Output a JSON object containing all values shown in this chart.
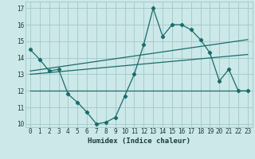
{
  "xlabel": "Humidex (Indice chaleur)",
  "xlim": [
    -0.5,
    23.5
  ],
  "ylim": [
    9.8,
    17.4
  ],
  "yticks": [
    10,
    11,
    12,
    13,
    14,
    15,
    16,
    17
  ],
  "xticks": [
    0,
    1,
    2,
    3,
    4,
    5,
    6,
    7,
    8,
    9,
    10,
    11,
    12,
    13,
    14,
    15,
    16,
    17,
    18,
    19,
    20,
    21,
    22,
    23
  ],
  "background_color": "#cce8e8",
  "grid_color": "#a0c8c8",
  "line_color": "#1a6b6b",
  "main_line": {
    "x": [
      0,
      1,
      2,
      3,
      4,
      5,
      6,
      7,
      8,
      9,
      10,
      11,
      12,
      13,
      14,
      15,
      16,
      17,
      18,
      19,
      20,
      21,
      22,
      23
    ],
    "y": [
      14.5,
      13.9,
      13.2,
      13.3,
      11.8,
      11.3,
      10.7,
      10.0,
      10.1,
      10.4,
      11.7,
      13.0,
      14.8,
      17.0,
      15.3,
      16.0,
      16.0,
      15.7,
      15.1,
      14.3,
      12.6,
      13.3,
      12.0,
      12.0
    ]
  },
  "trend_lines": [
    {
      "x": [
        0,
        23
      ],
      "y": [
        13.2,
        15.1
      ]
    },
    {
      "x": [
        0,
        23
      ],
      "y": [
        13.0,
        14.2
      ]
    },
    {
      "x": [
        0,
        23
      ],
      "y": [
        12.0,
        12.0
      ]
    }
  ]
}
